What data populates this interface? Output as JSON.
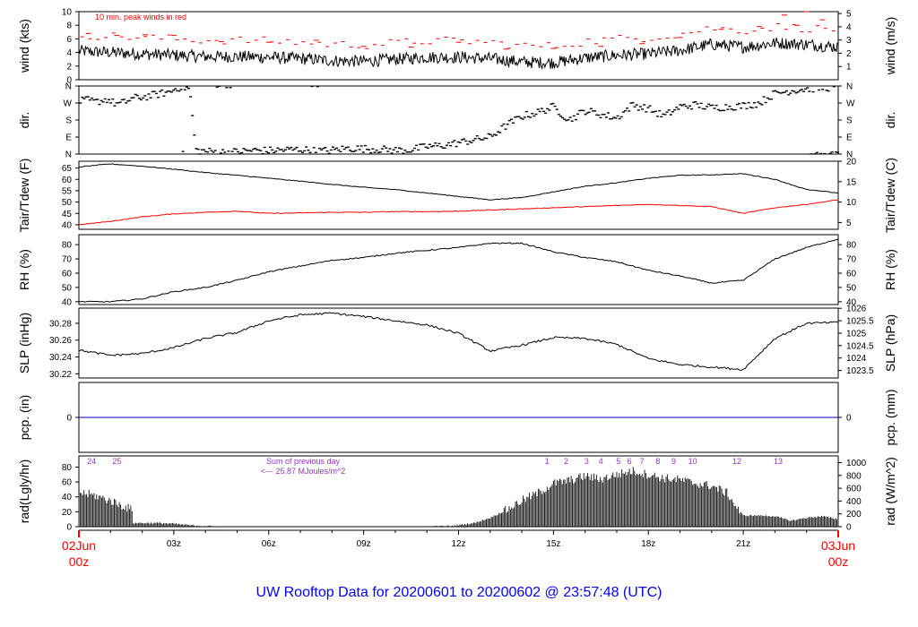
{
  "chart_data": {
    "type": "line",
    "title": "UW Rooftop Data for 20200601  to  20200602 @ 23:57:48  (UTC)",
    "x_axis": {
      "start_label": [
        "02Jun",
        "00z"
      ],
      "end_label": [
        "03Jun",
        "00z"
      ],
      "tick_labels": [
        "03z",
        "06z",
        "09z",
        "12z",
        "15z",
        "18z",
        "21z"
      ],
      "range_hours": [
        0,
        24
      ],
      "grid": false
    },
    "colors": {
      "main": "#000000",
      "peak": "#ff0000",
      "tdew": "#ff0000",
      "pcp": "#0000cc",
      "annot": "#9933cc",
      "footer": "#0000ff",
      "date": "#ff0000"
    },
    "panels": [
      {
        "id": "wind",
        "type": "line",
        "ylabel_left": "wind (kts)",
        "ylabel_right": "wind (m/s)",
        "ylim": [
          0,
          10
        ],
        "left_ticks": [
          "0",
          "2",
          "4",
          "6",
          "8",
          "10"
        ],
        "right_ticks": [
          "1",
          "2",
          "3",
          "4",
          "5"
        ],
        "note": "10 min. peak winds in red",
        "series": [
          {
            "x": [
              0,
              1,
              2,
              3,
              4,
              5,
              6,
              7,
              8,
              9,
              10,
              11,
              12,
              13,
              14,
              15,
              16,
              17,
              18,
              19,
              20,
              21,
              22,
              23,
              24
            ],
            "values": [
              4.2,
              4.0,
              3.8,
              3.6,
              3.4,
              3.4,
              3.3,
              3.1,
              2.8,
              2.7,
              3.0,
              3.3,
              3.3,
              3.1,
              2.6,
              2.5,
              3.2,
              3.6,
              3.8,
              4.3,
              5.2,
              4.8,
              5.4,
              5.2,
              4.8
            ]
          }
        ],
        "peaks": {
          "x": [
            0.3,
            1.2,
            2.1,
            3.0,
            4.5,
            6.0,
            7.5,
            9.0,
            10.5,
            12.0,
            13.5,
            15.0,
            16.5,
            17.8,
            19.0,
            20.3,
            21.5,
            22.3,
            22.7,
            23.0,
            23.5
          ],
          "values": [
            6.8,
            6.5,
            6.6,
            6.5,
            5.6,
            5.5,
            5.8,
            4.9,
            4.8,
            5.5,
            4.5,
            4.6,
            4.9,
            5.3,
            6.2,
            7.4,
            7.8,
            9.5,
            8.0,
            10.0,
            8.8
          ]
        }
      },
      {
        "id": "dir",
        "type": "scatter",
        "ylabel_left": "dir.",
        "ylabel_right": "dir.",
        "ylim": [
          0,
          360
        ],
        "left_ticks": [
          "N",
          "E",
          "S",
          "W",
          "N"
        ],
        "right_ticks": [
          "N",
          "E",
          "S",
          "W",
          "N"
        ],
        "series": [
          {
            "x": [
              0.1,
              0.3,
              0.5,
              0.7,
              0.9,
              1.1,
              1.3,
              1.5,
              1.7,
              2.0,
              2.3,
              2.6,
              2.9,
              3.1,
              3.3,
              3.5,
              3.7,
              4.0,
              4.5,
              5.0,
              5.5,
              6.0,
              6.5,
              7.0,
              7.5,
              8.0,
              8.5,
              9.0,
              9.5,
              10.0,
              10.5,
              11.0,
              11.5,
              12.0,
              12.5,
              13.0,
              13.5,
              14.0,
              14.5,
              15.0,
              15.5,
              16.0,
              16.5,
              17.0,
              17.5,
              18.0,
              18.5,
              19.0,
              19.5,
              20.0,
              20.5,
              21.0,
              21.5,
              22.0,
              22.5,
              23.0,
              23.5,
              23.9
            ],
            "values": [
              280,
              285,
              275,
              282,
              290,
              270,
              265,
              278,
              295,
              300,
              310,
              320,
              330,
              350,
              355,
              345,
              20,
              15,
              10,
              12,
              20,
              18,
              22,
              25,
              15,
              20,
              30,
              28,
              25,
              20,
              22,
              40,
              45,
              60,
              75,
              90,
              150,
              200,
              220,
              250,
              180,
              230,
              210,
              190,
              260,
              240,
              200,
              250,
              260,
              245,
              250,
              255,
              270,
              320,
              335,
              345,
              350,
              355
            ]
          }
        ]
      },
      {
        "id": "temp",
        "type": "line",
        "ylabel_left": "Tair/Tdew (F)",
        "ylabel_right": "Tair/Tdew (C)",
        "ylim": [
          38,
          68
        ],
        "left_ticks": [
          "40",
          "45",
          "50",
          "55",
          "60",
          "65"
        ],
        "right_ticks": [
          "5",
          "10",
          "15",
          "20"
        ],
        "series": [
          {
            "name": "Tair",
            "x": [
              0,
              1,
              2,
              3,
              4,
              5,
              6,
              7,
              8,
              9,
              10,
              11,
              12,
              13,
              14,
              15,
              16,
              17,
              18,
              19,
              20,
              21,
              22,
              23,
              24
            ],
            "values": [
              65.5,
              66.8,
              65.8,
              64.5,
              63.0,
              61.8,
              60.5,
              59.2,
              57.8,
              56.5,
              55.5,
              54.0,
              52.5,
              51.0,
              52.0,
              54.5,
              57.0,
              58.5,
              60.5,
              61.8,
              62.0,
              62.5,
              60.0,
              55.5,
              54.0
            ]
          },
          {
            "name": "Tdew",
            "x": [
              0,
              1,
              2,
              3,
              4,
              5,
              6,
              7,
              8,
              9,
              10,
              11,
              12,
              13,
              14,
              15,
              16,
              17,
              18,
              19,
              20,
              21,
              22,
              23,
              24
            ],
            "values": [
              40.0,
              41.5,
              43.5,
              44.8,
              45.5,
              46.0,
              45.0,
              45.2,
              45.5,
              45.5,
              45.8,
              45.8,
              46.0,
              46.5,
              47.0,
              47.5,
              48.0,
              48.5,
              49.0,
              48.5,
              48.0,
              45.0,
              47.5,
              49.0,
              51.0
            ]
          }
        ]
      },
      {
        "id": "rh",
        "type": "line",
        "ylabel_left": "RH (%)",
        "ylabel_right": "RH (%)",
        "ylim": [
          38,
          87
        ],
        "left_ticks": [
          "40",
          "50",
          "60",
          "70",
          "80"
        ],
        "right_ticks": [
          "40",
          "50",
          "60",
          "70",
          "80"
        ],
        "series": [
          {
            "x": [
              0,
              1,
              2,
              3,
              4,
              5,
              6,
              7,
              8,
              9,
              10,
              11,
              12,
              13,
              14,
              15,
              16,
              17,
              18,
              19,
              20,
              21,
              22,
              23,
              24
            ],
            "values": [
              40,
              40,
              42,
              47,
              50,
              55,
              61,
              65,
              69,
              71,
              74,
              76,
              78,
              81,
              81,
              75,
              71,
              68,
              62,
              58,
              53,
              55,
              70,
              78,
              84
            ]
          }
        ]
      },
      {
        "id": "slp",
        "type": "line",
        "ylabel_left": "SLP (inHg)",
        "ylabel_right": "SLP (hPa)",
        "ylim": [
          30.215,
          30.298
        ],
        "left_ticks": [
          "30.22",
          "30.24",
          "30.26",
          "30.28"
        ],
        "right_ticks": [
          "1023.5",
          "1024",
          "1024.5",
          "1025",
          "1025.5",
          "1026"
        ],
        "series": [
          {
            "x": [
              0,
              1,
              2,
              3,
              4,
              5,
              6,
              7,
              8,
              9,
              10,
              11,
              12,
              13,
              14,
              15,
              16,
              17,
              18,
              19,
              20,
              21,
              22,
              23,
              24
            ],
            "values": [
              30.248,
              30.242,
              30.244,
              30.251,
              30.262,
              30.269,
              30.283,
              30.29,
              30.292,
              30.288,
              30.283,
              30.278,
              30.268,
              30.247,
              30.254,
              30.263,
              30.262,
              30.255,
              30.238,
              30.231,
              30.228,
              30.225,
              30.262,
              30.28,
              30.281
            ]
          }
        ]
      },
      {
        "id": "pcp",
        "type": "line",
        "ylabel_left": "pcp. (in)",
        "ylabel_right": "pcp. (mm)",
        "ylim": [
          -1,
          1
        ],
        "left_ticks": [
          "0"
        ],
        "right_ticks": [
          "0"
        ],
        "series": [
          {
            "x": [
              0,
              24
            ],
            "values": [
              0,
              0
            ]
          }
        ]
      },
      {
        "id": "rad",
        "type": "area",
        "ylabel_left": "rad(Lgly/hr)",
        "ylabel_right": "rad (W/m^2)",
        "ylim": [
          0,
          95
        ],
        "left_ticks": [
          "0",
          "20",
          "40",
          "60",
          "80"
        ],
        "right_ticks": [
          "0",
          "200",
          "400",
          "600",
          "800",
          "1000"
        ],
        "series": [
          {
            "x": [
              0,
              0.5,
              1.0,
              1.5,
              1.7,
              1.72,
              2.5,
              3.0,
              3.5,
              4.0,
              4.5,
              4.55,
              11.0,
              11.8,
              12.5,
              13.0,
              13.5,
              14.0,
              14.5,
              15.0,
              15.5,
              16.0,
              16.5,
              17.0,
              17.5,
              18.0,
              18.5,
              19.0,
              19.5,
              20.0,
              20.5,
              20.8,
              21.0,
              21.5,
              22.0,
              22.5,
              23.0,
              23.5,
              24.0
            ],
            "values": [
              46,
              42,
              35,
              26,
              22,
              5,
              5,
              4,
              2,
              1,
              0,
              0,
              0,
              1,
              5,
              12,
              22,
              35,
              45,
              58,
              62,
              68,
              64,
              70,
              75,
              70,
              65,
              63,
              58,
              55,
              45,
              25,
              15,
              15,
              14,
              8,
              12,
              14,
              10
            ]
          }
        ],
        "note": "Sum of previous day",
        "note2": "<--- 25.87 MJoules/m^2",
        "hour_marks": [
          "24",
          "25",
          "1",
          "2",
          "3",
          "4",
          "5",
          "6",
          "7",
          "8",
          "9",
          "10",
          "12",
          "13"
        ],
        "hour_mark_x": [
          0.4,
          1.2,
          14.8,
          15.4,
          16.05,
          16.5,
          17.05,
          17.4,
          17.8,
          18.3,
          18.8,
          19.4,
          20.8,
          22.1
        ]
      }
    ]
  }
}
